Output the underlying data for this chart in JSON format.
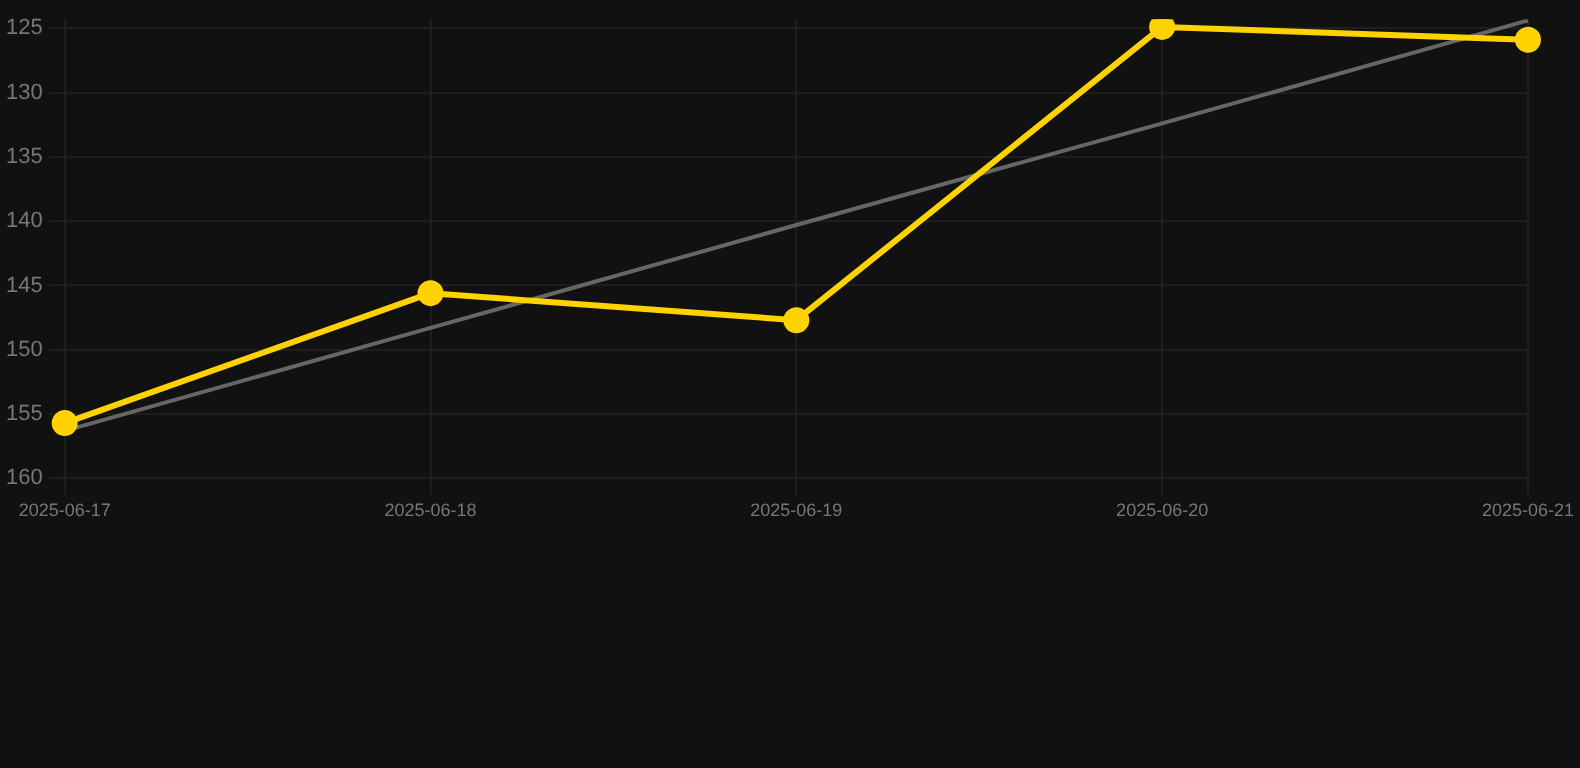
{
  "chart_data": {
    "type": "line",
    "categories": [
      "2025-06-17",
      "2025-06-18",
      "2025-06-19",
      "2025-06-20",
      "2025-06-21"
    ],
    "series": [
      {
        "color": "#ffd200",
        "values": [
          155.7,
          145.6,
          147.7,
          124.9,
          125.9
        ]
      },
      {
        "type": "line",
        "color": "#666666",
        "marker": "none",
        "values": [
          156.3,
          148.3,
          140.3,
          132.4,
          124.4
        ]
      }
    ],
    "ylim": [
      160,
      124.3
    ],
    "yticks": [
      125,
      130,
      135,
      140,
      145,
      150,
      155,
      160
    ],
    "grid": true,
    "marker": "circle",
    "line_style": "solid"
  }
}
